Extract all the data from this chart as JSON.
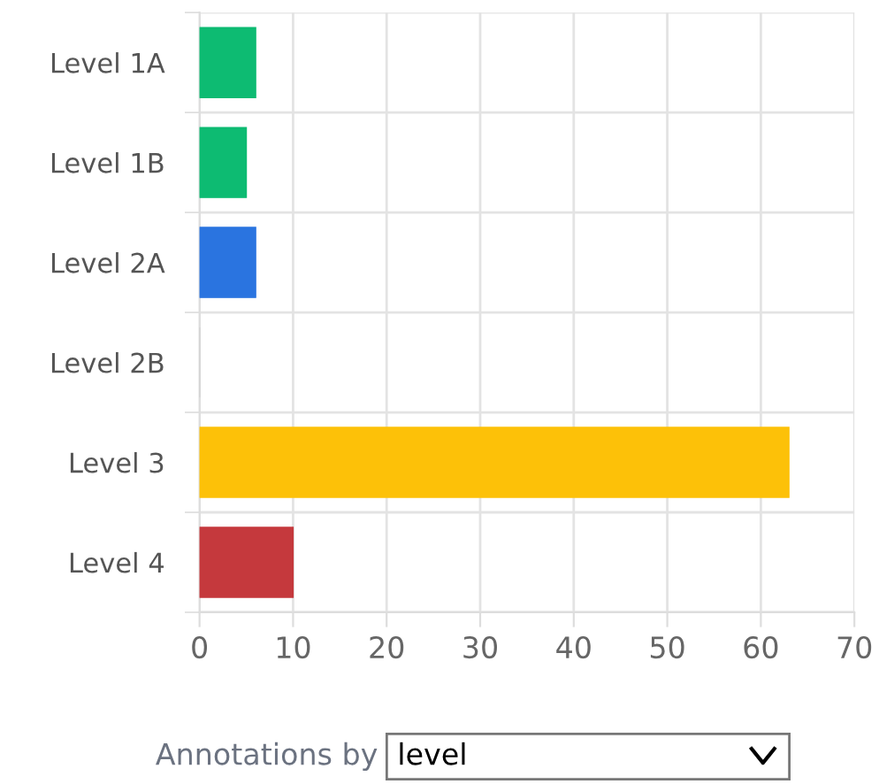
{
  "chart_data": {
    "type": "bar",
    "orientation": "horizontal",
    "categories": [
      "Level 1A",
      "Level 1B",
      "Level 2A",
      "Level 2B",
      "Level 3",
      "Level 4"
    ],
    "values": [
      6,
      5,
      6,
      0,
      63,
      10
    ],
    "colors": [
      "#0dbb72",
      "#0dbb72",
      "#2a74e0",
      "#cccccc",
      "#fdc108",
      "#c5393d"
    ],
    "xlim": [
      0,
      70
    ],
    "xticks": [
      0,
      10,
      20,
      30,
      40,
      50,
      60,
      70
    ],
    "grid": true,
    "annotations": [
      "Annotations by",
      "level"
    ]
  }
}
